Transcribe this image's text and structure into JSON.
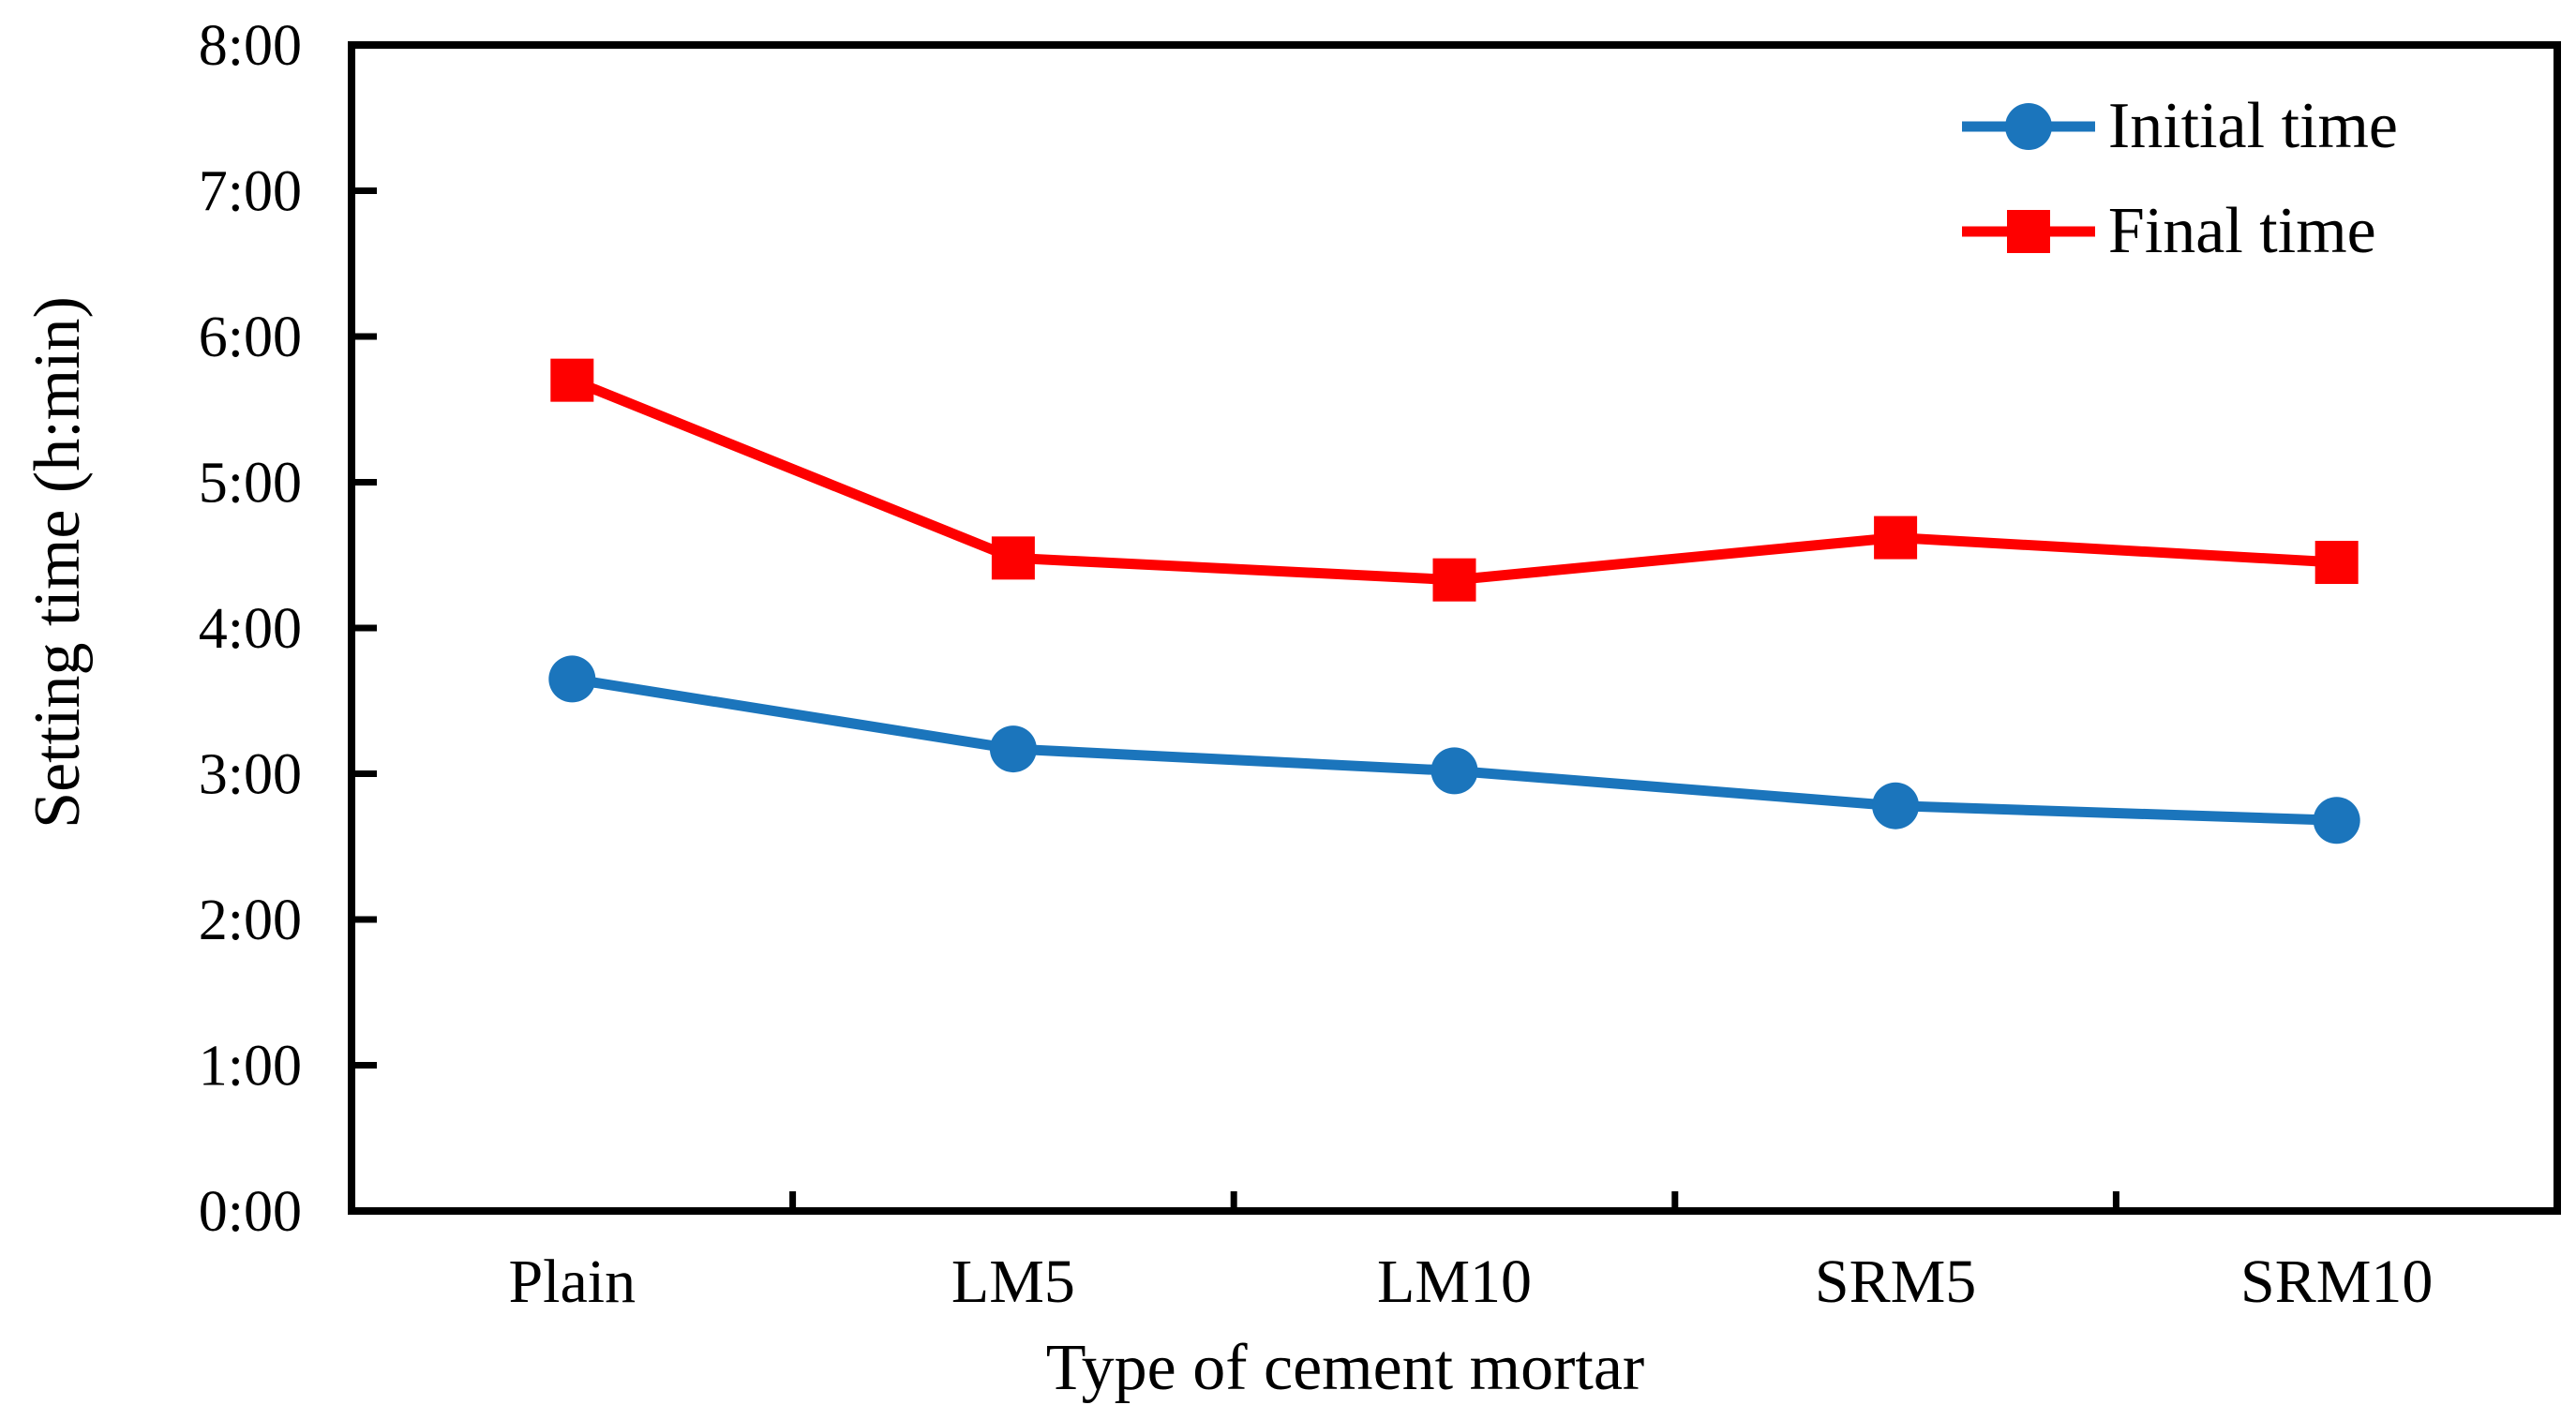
{
  "figure": {
    "background": "#ffffff",
    "axis_color": "#000000",
    "text_color": "#000000"
  },
  "chart_data": {
    "type": "line",
    "title": "",
    "xlabel": "Type of cement mortar",
    "ylabel": "Setting time (h:min)",
    "categories": [
      "Plain",
      "LM5",
      "LM10",
      "SRM5",
      "SRM10"
    ],
    "series": [
      {
        "name": "Initial time",
        "marker": "circle",
        "color": "#1b75bc",
        "values_hmin": [
          "3:39",
          "3:10",
          "3:01",
          "2:47",
          "2:41"
        ],
        "values_hours": [
          3.65,
          3.17,
          3.02,
          2.78,
          2.68
        ]
      },
      {
        "name": "Final time",
        "marker": "square",
        "color": "#fe0000",
        "values_hmin": [
          "5:42",
          "4:29",
          "4:20",
          "4:37",
          "4:27"
        ],
        "values_hours": [
          5.7,
          4.48,
          4.33,
          4.62,
          4.45
        ]
      }
    ],
    "ylim": [
      0,
      8
    ],
    "ytick_labels": [
      "0:00",
      "1:00",
      "2:00",
      "3:00",
      "4:00",
      "5:00",
      "6:00",
      "7:00",
      "8:00"
    ],
    "grid": false,
    "legend_position": "top-right-inside"
  }
}
